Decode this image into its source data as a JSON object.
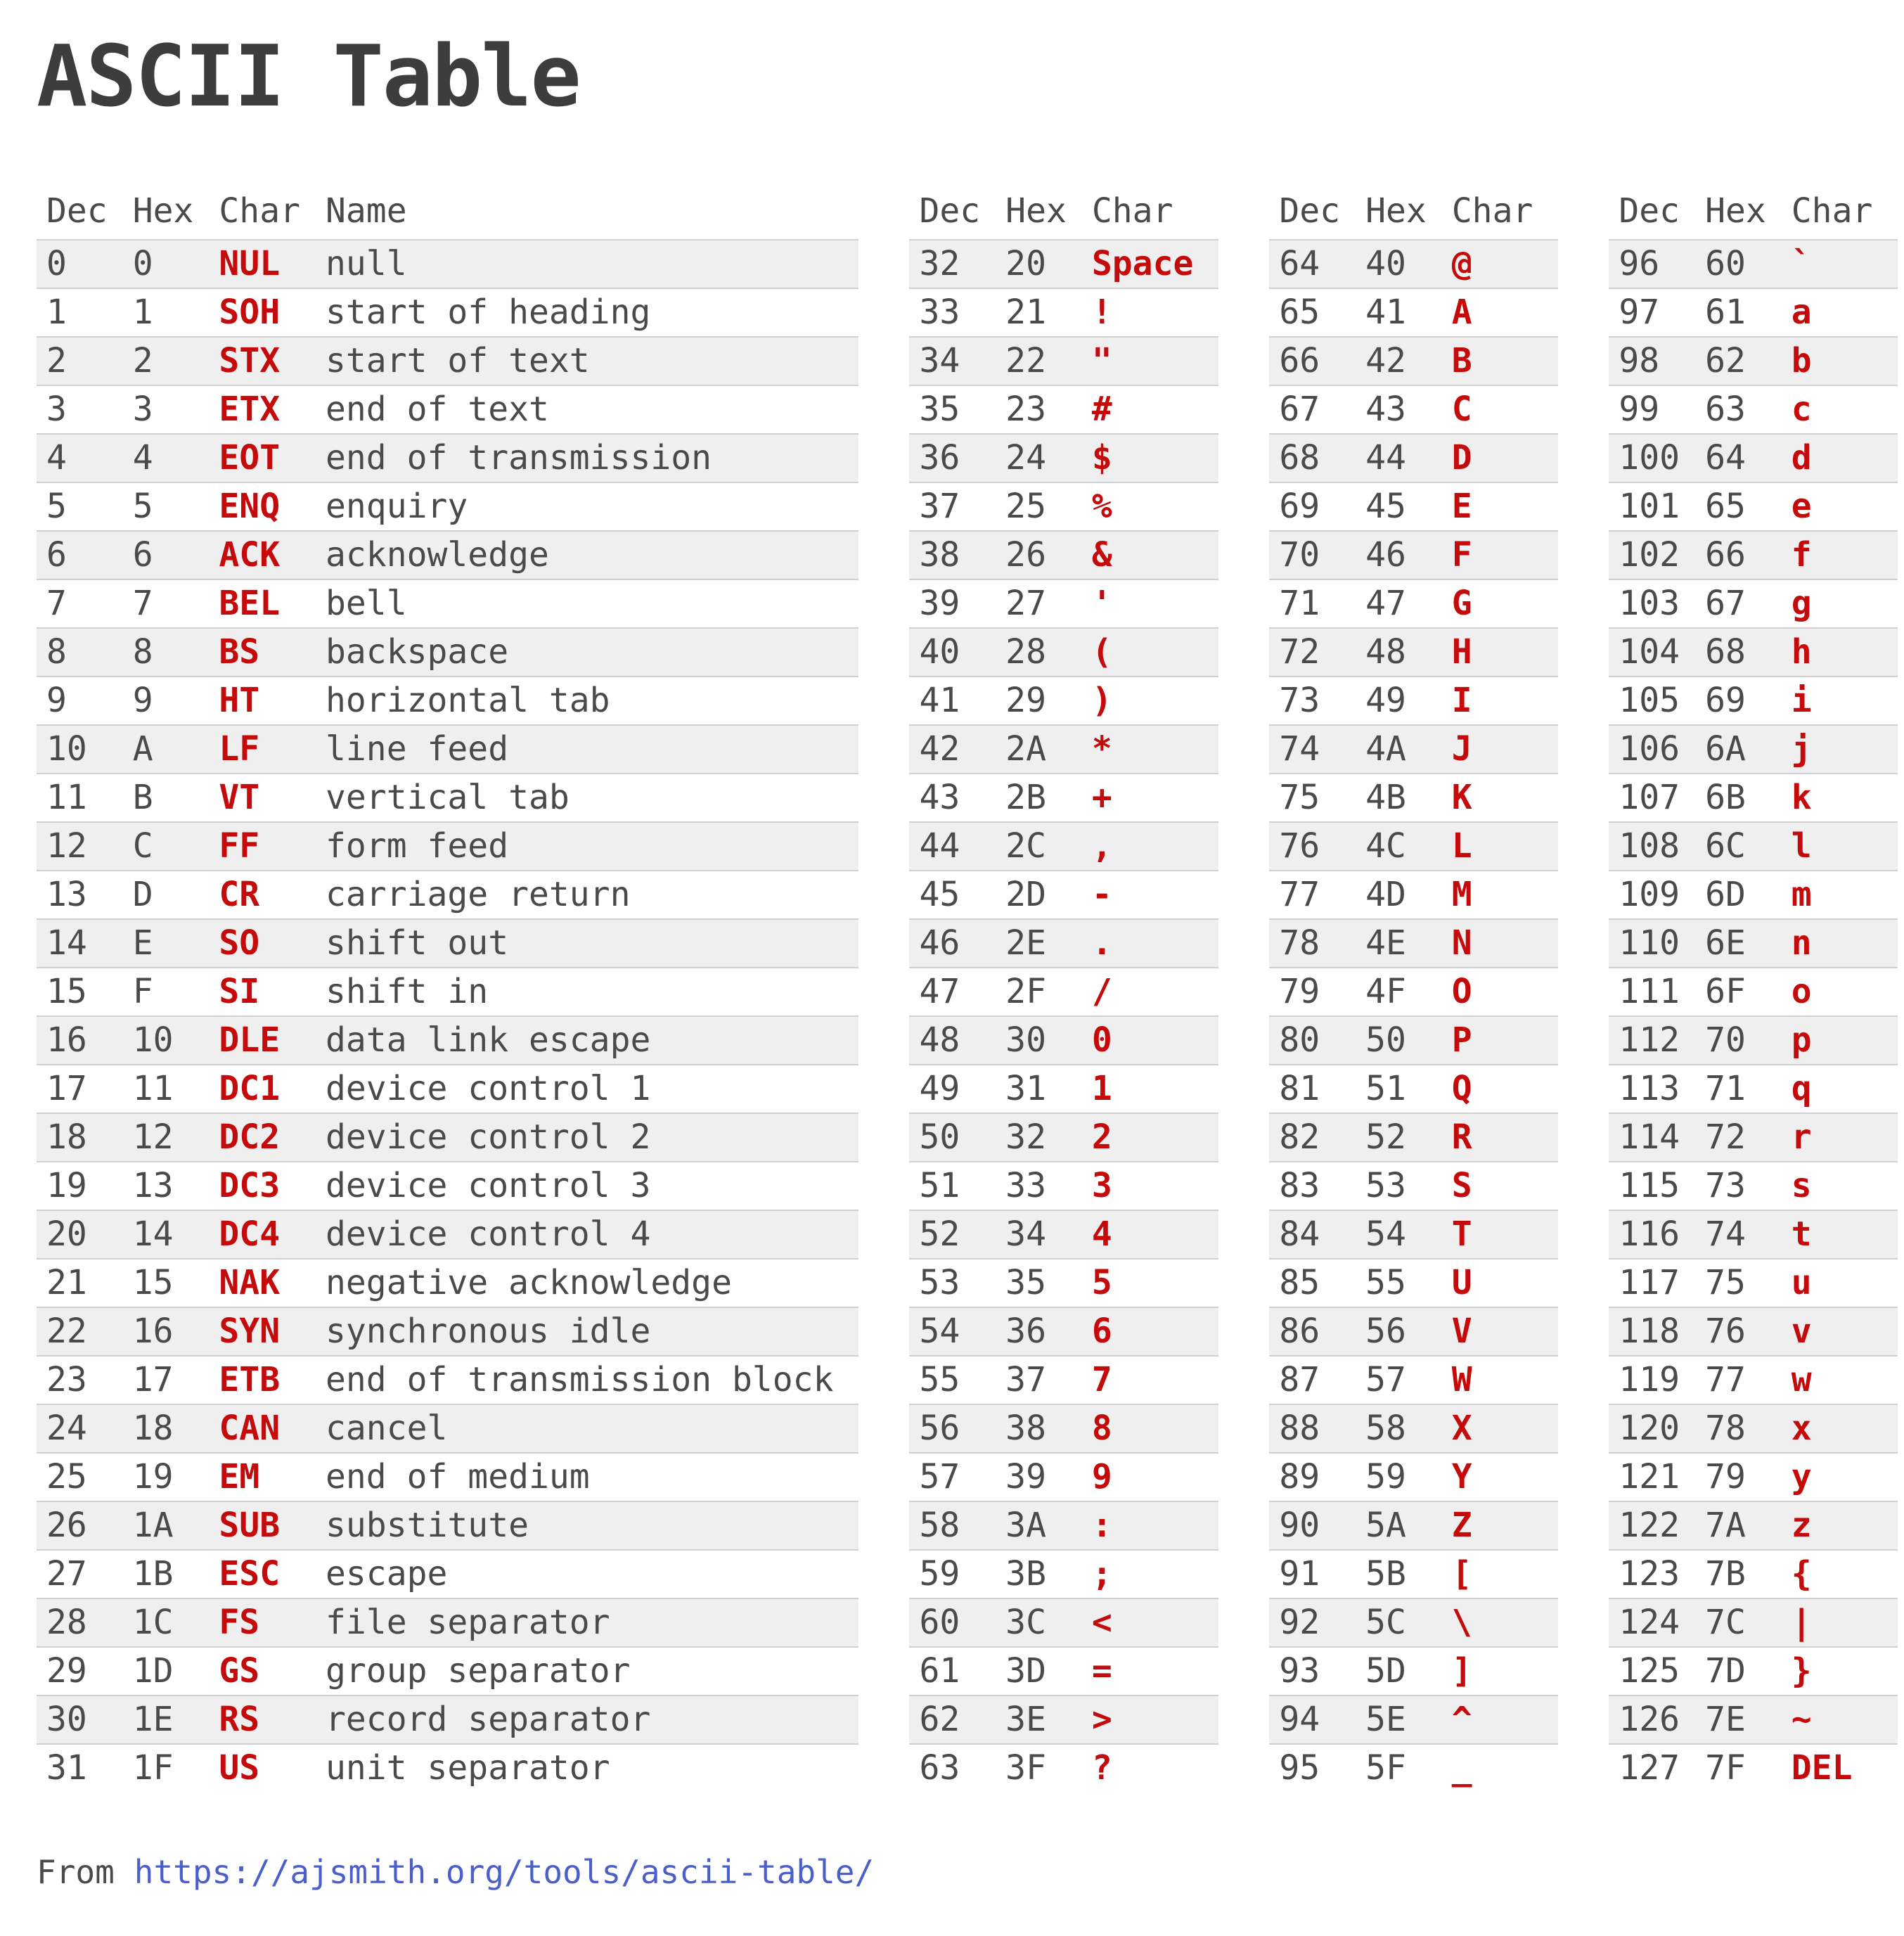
{
  "title": "ASCII Table",
  "colors": {
    "text": "#4a4a4a",
    "title": "#3d3d3d",
    "accent_red": "#c40a0a",
    "stripe": "#efefef",
    "border": "#d0d0d0",
    "link": "#4a5fc8",
    "bg": "#ffffff"
  },
  "footer": {
    "prefix": "From",
    "url": "https://ajsmith.org/tools/ascii-table/"
  },
  "tables": [
    {
      "headers": [
        "Dec",
        "Hex",
        "Char",
        "Name"
      ],
      "rows": [
        [
          "0",
          "0",
          "NUL",
          "null"
        ],
        [
          "1",
          "1",
          "SOH",
          "start of heading"
        ],
        [
          "2",
          "2",
          "STX",
          "start of text"
        ],
        [
          "3",
          "3",
          "ETX",
          "end of text"
        ],
        [
          "4",
          "4",
          "EOT",
          "end of transmission"
        ],
        [
          "5",
          "5",
          "ENQ",
          "enquiry"
        ],
        [
          "6",
          "6",
          "ACK",
          "acknowledge"
        ],
        [
          "7",
          "7",
          "BEL",
          "bell"
        ],
        [
          "8",
          "8",
          "BS",
          "backspace"
        ],
        [
          "9",
          "9",
          "HT",
          "horizontal tab"
        ],
        [
          "10",
          "A",
          "LF",
          "line feed"
        ],
        [
          "11",
          "B",
          "VT",
          "vertical tab"
        ],
        [
          "12",
          "C",
          "FF",
          "form feed"
        ],
        [
          "13",
          "D",
          "CR",
          "carriage return"
        ],
        [
          "14",
          "E",
          "SO",
          "shift out"
        ],
        [
          "15",
          "F",
          "SI",
          "shift in"
        ],
        [
          "16",
          "10",
          "DLE",
          "data link escape"
        ],
        [
          "17",
          "11",
          "DC1",
          "device control 1"
        ],
        [
          "18",
          "12",
          "DC2",
          "device control 2"
        ],
        [
          "19",
          "13",
          "DC3",
          "device control 3"
        ],
        [
          "20",
          "14",
          "DC4",
          "device control 4"
        ],
        [
          "21",
          "15",
          "NAK",
          "negative acknowledge"
        ],
        [
          "22",
          "16",
          "SYN",
          "synchronous idle"
        ],
        [
          "23",
          "17",
          "ETB",
          "end of transmission block"
        ],
        [
          "24",
          "18",
          "CAN",
          "cancel"
        ],
        [
          "25",
          "19",
          "EM",
          "end of medium"
        ],
        [
          "26",
          "1A",
          "SUB",
          "substitute"
        ],
        [
          "27",
          "1B",
          "ESC",
          "escape"
        ],
        [
          "28",
          "1C",
          "FS",
          "file separator"
        ],
        [
          "29",
          "1D",
          "GS",
          "group separator"
        ],
        [
          "30",
          "1E",
          "RS",
          "record separator"
        ],
        [
          "31",
          "1F",
          "US",
          "unit separator"
        ]
      ]
    },
    {
      "headers": [
        "Dec",
        "Hex",
        "Char"
      ],
      "rows": [
        [
          "32",
          "20",
          "Space"
        ],
        [
          "33",
          "21",
          "!"
        ],
        [
          "34",
          "22",
          "\""
        ],
        [
          "35",
          "23",
          "#"
        ],
        [
          "36",
          "24",
          "$"
        ],
        [
          "37",
          "25",
          "%"
        ],
        [
          "38",
          "26",
          "&"
        ],
        [
          "39",
          "27",
          "'"
        ],
        [
          "40",
          "28",
          "("
        ],
        [
          "41",
          "29",
          ")"
        ],
        [
          "42",
          "2A",
          "*"
        ],
        [
          "43",
          "2B",
          "+"
        ],
        [
          "44",
          "2C",
          ","
        ],
        [
          "45",
          "2D",
          "-"
        ],
        [
          "46",
          "2E",
          "."
        ],
        [
          "47",
          "2F",
          "/"
        ],
        [
          "48",
          "30",
          "0"
        ],
        [
          "49",
          "31",
          "1"
        ],
        [
          "50",
          "32",
          "2"
        ],
        [
          "51",
          "33",
          "3"
        ],
        [
          "52",
          "34",
          "4"
        ],
        [
          "53",
          "35",
          "5"
        ],
        [
          "54",
          "36",
          "6"
        ],
        [
          "55",
          "37",
          "7"
        ],
        [
          "56",
          "38",
          "8"
        ],
        [
          "57",
          "39",
          "9"
        ],
        [
          "58",
          "3A",
          ":"
        ],
        [
          "59",
          "3B",
          ";"
        ],
        [
          "60",
          "3C",
          "<"
        ],
        [
          "61",
          "3D",
          "="
        ],
        [
          "62",
          "3E",
          ">"
        ],
        [
          "63",
          "3F",
          "?"
        ]
      ]
    },
    {
      "headers": [
        "Dec",
        "Hex",
        "Char"
      ],
      "rows": [
        [
          "64",
          "40",
          "@"
        ],
        [
          "65",
          "41",
          "A"
        ],
        [
          "66",
          "42",
          "B"
        ],
        [
          "67",
          "43",
          "C"
        ],
        [
          "68",
          "44",
          "D"
        ],
        [
          "69",
          "45",
          "E"
        ],
        [
          "70",
          "46",
          "F"
        ],
        [
          "71",
          "47",
          "G"
        ],
        [
          "72",
          "48",
          "H"
        ],
        [
          "73",
          "49",
          "I"
        ],
        [
          "74",
          "4A",
          "J"
        ],
        [
          "75",
          "4B",
          "K"
        ],
        [
          "76",
          "4C",
          "L"
        ],
        [
          "77",
          "4D",
          "M"
        ],
        [
          "78",
          "4E",
          "N"
        ],
        [
          "79",
          "4F",
          "O"
        ],
        [
          "80",
          "50",
          "P"
        ],
        [
          "81",
          "51",
          "Q"
        ],
        [
          "82",
          "52",
          "R"
        ],
        [
          "83",
          "53",
          "S"
        ],
        [
          "84",
          "54",
          "T"
        ],
        [
          "85",
          "55",
          "U"
        ],
        [
          "86",
          "56",
          "V"
        ],
        [
          "87",
          "57",
          "W"
        ],
        [
          "88",
          "58",
          "X"
        ],
        [
          "89",
          "59",
          "Y"
        ],
        [
          "90",
          "5A",
          "Z"
        ],
        [
          "91",
          "5B",
          "["
        ],
        [
          "92",
          "5C",
          "\\"
        ],
        [
          "93",
          "5D",
          "]"
        ],
        [
          "94",
          "5E",
          "^"
        ],
        [
          "95",
          "5F",
          "_"
        ]
      ]
    },
    {
      "headers": [
        "Dec",
        "Hex",
        "Char"
      ],
      "rows": [
        [
          "96",
          "60",
          "`"
        ],
        [
          "97",
          "61",
          "a"
        ],
        [
          "98",
          "62",
          "b"
        ],
        [
          "99",
          "63",
          "c"
        ],
        [
          "100",
          "64",
          "d"
        ],
        [
          "101",
          "65",
          "e"
        ],
        [
          "102",
          "66",
          "f"
        ],
        [
          "103",
          "67",
          "g"
        ],
        [
          "104",
          "68",
          "h"
        ],
        [
          "105",
          "69",
          "i"
        ],
        [
          "106",
          "6A",
          "j"
        ],
        [
          "107",
          "6B",
          "k"
        ],
        [
          "108",
          "6C",
          "l"
        ],
        [
          "109",
          "6D",
          "m"
        ],
        [
          "110",
          "6E",
          "n"
        ],
        [
          "111",
          "6F",
          "o"
        ],
        [
          "112",
          "70",
          "p"
        ],
        [
          "113",
          "71",
          "q"
        ],
        [
          "114",
          "72",
          "r"
        ],
        [
          "115",
          "73",
          "s"
        ],
        [
          "116",
          "74",
          "t"
        ],
        [
          "117",
          "75",
          "u"
        ],
        [
          "118",
          "76",
          "v"
        ],
        [
          "119",
          "77",
          "w"
        ],
        [
          "120",
          "78",
          "x"
        ],
        [
          "121",
          "79",
          "y"
        ],
        [
          "122",
          "7A",
          "z"
        ],
        [
          "123",
          "7B",
          "{"
        ],
        [
          "124",
          "7C",
          "|"
        ],
        [
          "125",
          "7D",
          "}"
        ],
        [
          "126",
          "7E",
          "~"
        ],
        [
          "127",
          "7F",
          "DEL"
        ]
      ]
    }
  ]
}
